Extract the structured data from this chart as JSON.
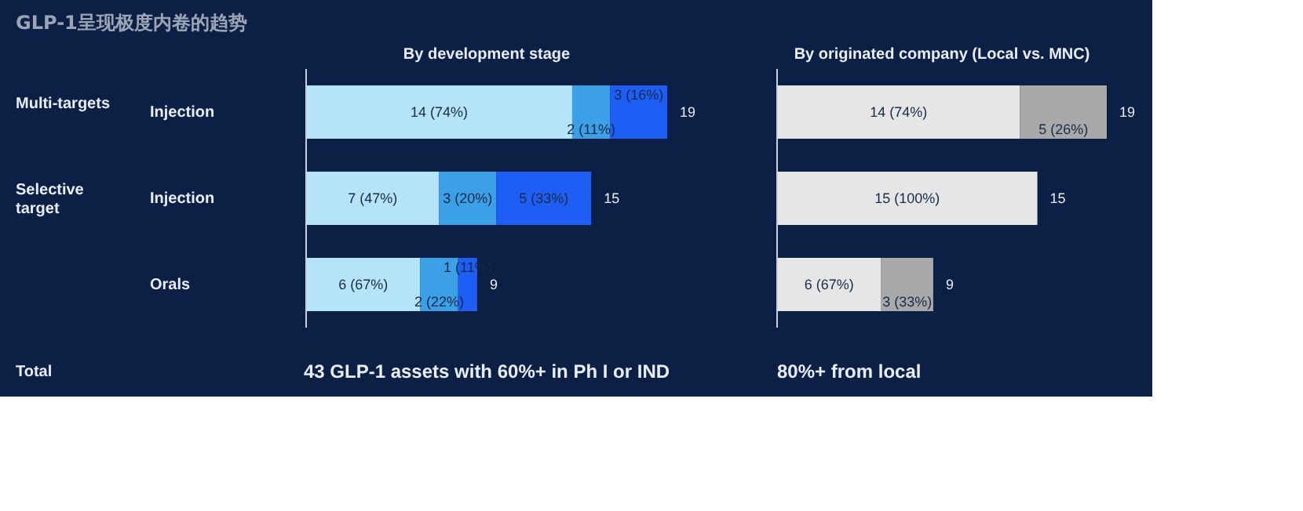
{
  "chart_data": [
    {
      "type": "bar",
      "orientation": "horizontal",
      "stacked": true,
      "title": "By development stage",
      "categories": [
        "Injection",
        "Injection",
        "Orals"
      ],
      "tick_labels": "y",
      "series": [
        {
          "color": "#b5e3f7",
          "values": [
            14,
            7,
            6
          ],
          "value_labels": [
            "14 (74%)",
            "7 (47%)",
            "6 (67%)"
          ]
        },
        {
          "color": "#3ba0e6",
          "values": [
            2,
            3,
            2
          ],
          "value_labels": [
            "2 (11%)",
            "3 (20%)",
            "2 (22%)"
          ]
        },
        {
          "color": "#1f5ef5",
          "values": [
            3,
            5,
            1
          ],
          "value_labels": [
            "3 (16%)",
            "5 (33%)",
            "1 (11%)"
          ]
        }
      ],
      "totals": [
        "19",
        "15",
        "9"
      ],
      "annotations": [
        "GLP-1呈现极度内卷的趋势",
        "Multi-targets",
        "Selective target",
        "Total",
        "43 GLP-1 assets with 60%+ in Ph I or IND"
      ]
    },
    {
      "type": "bar",
      "orientation": "horizontal",
      "stacked": true,
      "title": "By originated company (Local vs. MNC)",
      "categories": [
        null,
        null,
        null
      ],
      "tick_labels": false,
      "series": [
        {
          "color": "#e6e6e6",
          "values": [
            14,
            15,
            6
          ],
          "value_labels": [
            "14 (74%)",
            "15 (100%)",
            "6 (67%)"
          ]
        },
        {
          "color": "#a9a9a9",
          "values": [
            5,
            null,
            3
          ],
          "value_labels": [
            "5 (26%)",
            null,
            "3 (33%)"
          ]
        }
      ],
      "totals": [
        "19",
        "15",
        "9"
      ],
      "annotations": [
        "80%+ from local"
      ]
    }
  ]
}
